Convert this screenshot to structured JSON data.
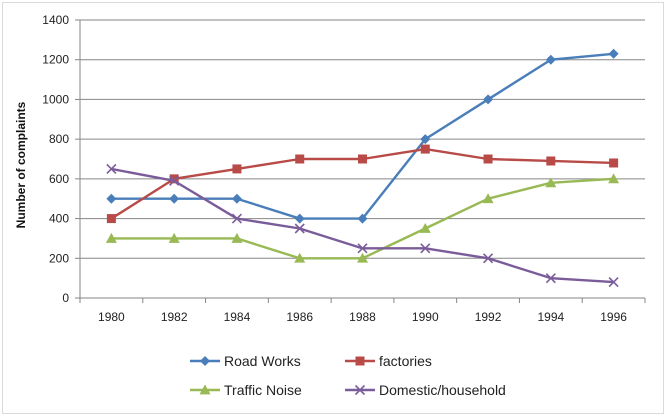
{
  "chart_data": {
    "type": "line",
    "title": "",
    "xlabel": "",
    "ylabel": "Number of complaints",
    "categories": [
      "1980",
      "1982",
      "1984",
      "1986",
      "1988",
      "1990",
      "1992",
      "1994",
      "1996"
    ],
    "ylim": [
      0,
      1400
    ],
    "yticks": [
      0,
      200,
      400,
      600,
      800,
      1000,
      1200,
      1400
    ],
    "grid": "horizontal",
    "legend_position": "bottom",
    "series": [
      {
        "name": "Road Works",
        "color": "#4a7eba",
        "marker": "diamond",
        "values": [
          500,
          500,
          500,
          400,
          400,
          800,
          1000,
          1200,
          1230
        ]
      },
      {
        "name": "factories",
        "color": "#b84a47",
        "marker": "square",
        "values": [
          400,
          600,
          650,
          700,
          700,
          750,
          700,
          690,
          680
        ]
      },
      {
        "name": "Traffic Noise",
        "color": "#98b954",
        "marker": "triangle",
        "values": [
          300,
          300,
          300,
          200,
          200,
          350,
          500,
          580,
          600
        ]
      },
      {
        "name": "Domestic/household",
        "color": "#7b5c9a",
        "marker": "x",
        "values": [
          650,
          590,
          400,
          350,
          250,
          250,
          200,
          100,
          80
        ]
      }
    ]
  }
}
